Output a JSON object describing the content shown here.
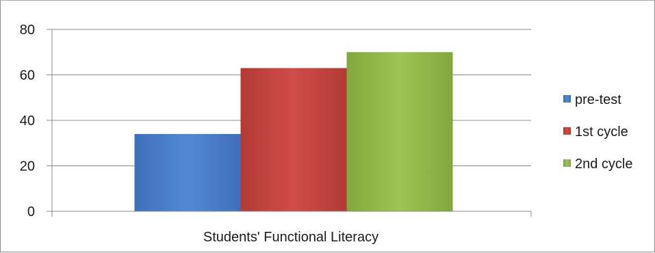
{
  "chart_data": {
    "type": "bar",
    "categories": [
      "Students' Functional Literacy"
    ],
    "series": [
      {
        "name": "pre-test",
        "values": [
          34
        ],
        "color": "#4a7cc9"
      },
      {
        "name": "1st cycle",
        "values": [
          63
        ],
        "color": "#c0433f"
      },
      {
        "name": "2nd cycle",
        "values": [
          70
        ],
        "color": "#8db545"
      }
    ],
    "title": "",
    "xlabel": "",
    "ylabel": "",
    "ylim": [
      0,
      80
    ],
    "yticks": [
      0,
      20,
      40,
      60,
      80
    ],
    "grid": true,
    "legend_position": "right"
  }
}
